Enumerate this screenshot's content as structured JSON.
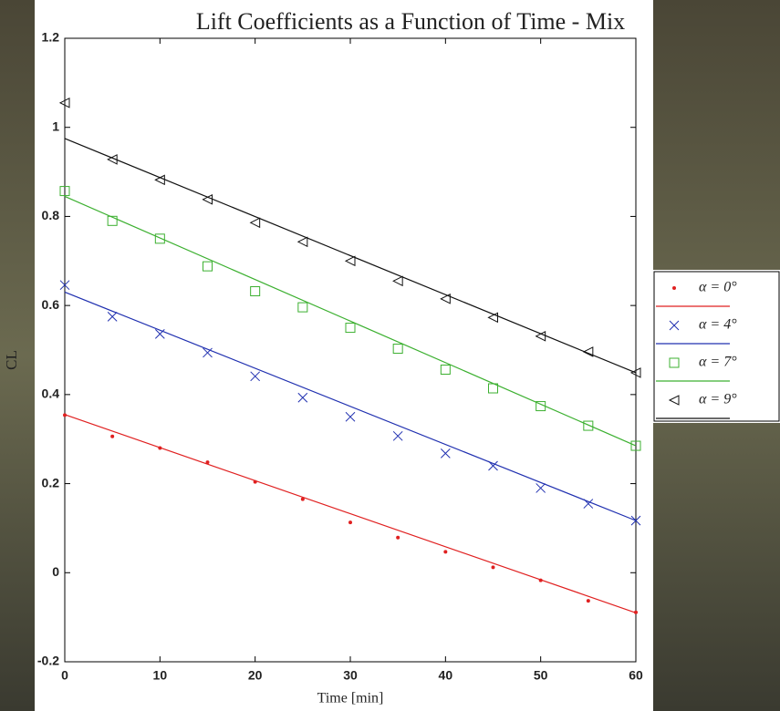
{
  "chart_data": {
    "type": "scatter",
    "title": "Lift Coefficients as a Function of Time - Mix",
    "xlabel": "Time [min]",
    "ylabel": "CL",
    "x": [
      0,
      5,
      10,
      15,
      20,
      25,
      30,
      35,
      40,
      45,
      50,
      55,
      60
    ],
    "xlim": [
      0,
      60
    ],
    "xticks": [
      0,
      10,
      20,
      30,
      40,
      50,
      60
    ],
    "ylim": [
      -0.2,
      1.2
    ],
    "yticks": [
      -0.2,
      0,
      0.2,
      0.4,
      0.6,
      0.8,
      1,
      1.2
    ],
    "grid": false,
    "legend": "right",
    "series": [
      {
        "name": "α = 0°",
        "color": "#e02020",
        "marker": "point",
        "values": [
          0.354,
          0.306,
          0.28,
          0.248,
          0.204,
          0.165,
          0.113,
          0.079,
          0.047,
          0.012,
          -0.017,
          -0.063,
          -0.089
        ],
        "fit": {
          "x": [
            0,
            60
          ],
          "values": [
            0.355,
            -0.09
          ]
        }
      },
      {
        "name": "α = 4°",
        "color": "#2030b0",
        "marker": "x",
        "values": [
          0.646,
          0.575,
          0.536,
          0.494,
          0.441,
          0.393,
          0.35,
          0.307,
          0.268,
          0.24,
          0.19,
          0.155,
          0.117
        ],
        "fit": {
          "x": [
            0,
            60
          ],
          "values": [
            0.63,
            0.117
          ]
        }
      },
      {
        "name": "α = 7°",
        "color": "#3cb030",
        "marker": "square",
        "values": [
          0.857,
          0.79,
          0.75,
          0.688,
          0.632,
          0.596,
          0.55,
          0.503,
          0.456,
          0.414,
          0.374,
          0.33,
          0.285
        ],
        "fit": {
          "x": [
            0,
            60
          ],
          "values": [
            0.845,
            0.285
          ]
        }
      },
      {
        "name": "α = 9°",
        "color": "#111111",
        "marker": "triangle-left",
        "values": [
          1.055,
          0.928,
          0.882,
          0.838,
          0.786,
          0.743,
          0.7,
          0.655,
          0.615,
          0.573,
          0.531,
          0.496,
          0.449
        ],
        "fit": {
          "x": [
            0,
            60
          ],
          "values": [
            0.975,
            0.449
          ]
        }
      }
    ]
  }
}
